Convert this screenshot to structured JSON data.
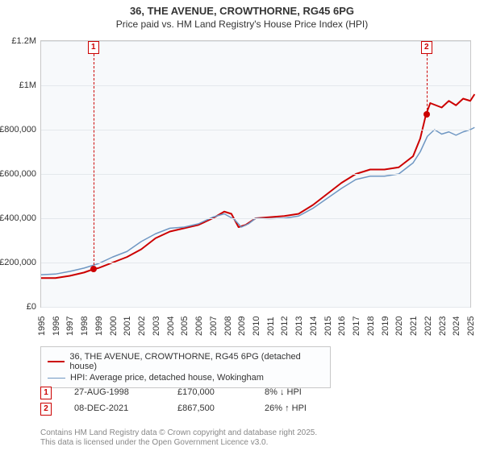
{
  "title": {
    "main": "36, THE AVENUE, CROWTHORNE, RG45 6PG",
    "sub": "Price paid vs. HM Land Registry's House Price Index (HPI)"
  },
  "chart": {
    "type": "line",
    "background_color": "#f7f9fb",
    "grid_color": "#e4e8ec",
    "border_color": "#c8c8c8",
    "x": {
      "min": 1995,
      "max": 2025,
      "step": 1,
      "labels": [
        "1995",
        "1996",
        "1997",
        "1998",
        "1999",
        "2000",
        "2001",
        "2002",
        "2003",
        "2004",
        "2005",
        "2006",
        "2007",
        "2008",
        "2009",
        "2010",
        "2011",
        "2012",
        "2013",
        "2014",
        "2015",
        "2016",
        "2017",
        "2018",
        "2019",
        "2020",
        "2021",
        "2022",
        "2023",
        "2024",
        "2025"
      ],
      "label_fontsize": 11
    },
    "y": {
      "min": 0,
      "max": 1200000,
      "step": 200000,
      "labels": [
        "£0",
        "£200,000",
        "£400,000",
        "£600,000",
        "£800,000",
        "£1M",
        "£1.2M"
      ],
      "label_fontsize": 11
    },
    "series": [
      {
        "id": "price_paid",
        "label": "36, THE AVENUE, CROWTHORNE, RG45 6PG (detached house)",
        "color": "#cc0000",
        "line_width": 2,
        "points": [
          [
            1995.0,
            130000
          ],
          [
            1996.0,
            130000
          ],
          [
            1997.0,
            140000
          ],
          [
            1998.0,
            155000
          ],
          [
            1998.65,
            170000
          ],
          [
            1999.0,
            175000
          ],
          [
            2000.0,
            200000
          ],
          [
            2001.0,
            225000
          ],
          [
            2002.0,
            260000
          ],
          [
            2003.0,
            310000
          ],
          [
            2004.0,
            340000
          ],
          [
            2005.0,
            355000
          ],
          [
            2006.0,
            370000
          ],
          [
            2007.0,
            400000
          ],
          [
            2007.8,
            430000
          ],
          [
            2008.3,
            420000
          ],
          [
            2008.8,
            360000
          ],
          [
            2009.3,
            370000
          ],
          [
            2010.0,
            400000
          ],
          [
            2011.0,
            405000
          ],
          [
            2012.0,
            410000
          ],
          [
            2013.0,
            420000
          ],
          [
            2014.0,
            460000
          ],
          [
            2015.0,
            510000
          ],
          [
            2016.0,
            560000
          ],
          [
            2017.0,
            600000
          ],
          [
            2018.0,
            620000
          ],
          [
            2019.0,
            620000
          ],
          [
            2020.0,
            630000
          ],
          [
            2021.0,
            680000
          ],
          [
            2021.5,
            760000
          ],
          [
            2021.9,
            867500
          ],
          [
            2022.2,
            920000
          ],
          [
            2023.0,
            900000
          ],
          [
            2023.5,
            930000
          ],
          [
            2024.0,
            910000
          ],
          [
            2024.5,
            940000
          ],
          [
            2025.0,
            930000
          ],
          [
            2025.3,
            960000
          ]
        ]
      },
      {
        "id": "hpi",
        "label": "HPI: Average price, detached house, Wokingham",
        "color": "#6f97c3",
        "line_width": 1.5,
        "points": [
          [
            1995.0,
            145000
          ],
          [
            1996.0,
            148000
          ],
          [
            1997.0,
            160000
          ],
          [
            1998.0,
            175000
          ],
          [
            1999.0,
            195000
          ],
          [
            2000.0,
            225000
          ],
          [
            2001.0,
            250000
          ],
          [
            2002.0,
            295000
          ],
          [
            2003.0,
            330000
          ],
          [
            2004.0,
            355000
          ],
          [
            2005.0,
            360000
          ],
          [
            2006.0,
            375000
          ],
          [
            2007.0,
            405000
          ],
          [
            2007.8,
            420000
          ],
          [
            2008.5,
            395000
          ],
          [
            2009.0,
            360000
          ],
          [
            2009.5,
            375000
          ],
          [
            2010.0,
            400000
          ],
          [
            2011.0,
            398000
          ],
          [
            2012.0,
            400000
          ],
          [
            2013.0,
            410000
          ],
          [
            2014.0,
            445000
          ],
          [
            2015.0,
            490000
          ],
          [
            2016.0,
            535000
          ],
          [
            2017.0,
            575000
          ],
          [
            2018.0,
            590000
          ],
          [
            2019.0,
            590000
          ],
          [
            2020.0,
            600000
          ],
          [
            2021.0,
            650000
          ],
          [
            2021.5,
            700000
          ],
          [
            2022.0,
            770000
          ],
          [
            2022.5,
            800000
          ],
          [
            2023.0,
            780000
          ],
          [
            2023.5,
            790000
          ],
          [
            2024.0,
            775000
          ],
          [
            2024.5,
            790000
          ],
          [
            2025.0,
            800000
          ],
          [
            2025.3,
            810000
          ]
        ]
      }
    ],
    "markers": [
      {
        "id": "1",
        "x": 1998.65,
        "y": 170000,
        "color": "#cc0000",
        "date": "27-AUG-1998",
        "price": "£170,000",
        "delta": "8% ↓ HPI"
      },
      {
        "id": "2",
        "x": 2021.94,
        "y": 867500,
        "color": "#cc0000",
        "date": "08-DEC-2021",
        "price": "£867,500",
        "delta": "26% ↑ HPI"
      }
    ]
  },
  "legend": {
    "border_color": "#c8c8c8",
    "items_key": "chart.series"
  },
  "footer": {
    "line1": "Contains HM Land Registry data © Crown copyright and database right 2025.",
    "line2": "This data is licensed under the Open Government Licence v3.0."
  }
}
